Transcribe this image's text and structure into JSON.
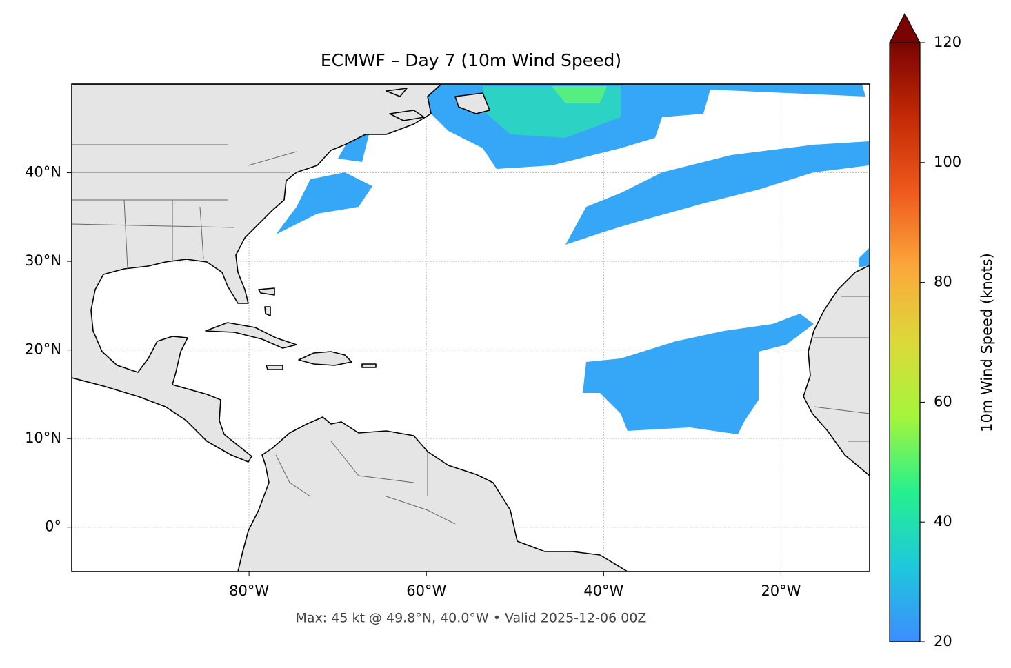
{
  "map": {
    "title": "ECMWF – Day 7 (10m Wind Speed)",
    "caption": "Max: 45 kt @ 49.8°N, 40.0°W • Valid 2025-12-06 00Z",
    "lonlim": [
      -100,
      -10
    ],
    "latlim": [
      -5,
      50
    ],
    "lonticks": [
      {
        "value": -80,
        "label": "80°W"
      },
      {
        "value": -60,
        "label": "60°W"
      },
      {
        "value": -40,
        "label": "40°W"
      },
      {
        "value": -20,
        "label": "20°W"
      }
    ],
    "latticks": [
      {
        "value": 0,
        "label": "0°"
      },
      {
        "value": 10,
        "label": "10°N"
      },
      {
        "value": 20,
        "label": "20°N"
      },
      {
        "value": 30,
        "label": "30°N"
      },
      {
        "value": 40,
        "label": "40°N"
      }
    ],
    "grid": true,
    "colorbar": {
      "label": "10m Wind Speed (knots)",
      "lim": [
        20,
        120
      ],
      "ticks": [
        20,
        40,
        60,
        80,
        100,
        120
      ],
      "colors": [
        "#3d8cff",
        "#1ec8dc",
        "#25f08e",
        "#a4f53b",
        "#dcd93a",
        "#fba83b",
        "#ef5a1d",
        "#c42a05",
        "#7a0403"
      ]
    }
  }
}
